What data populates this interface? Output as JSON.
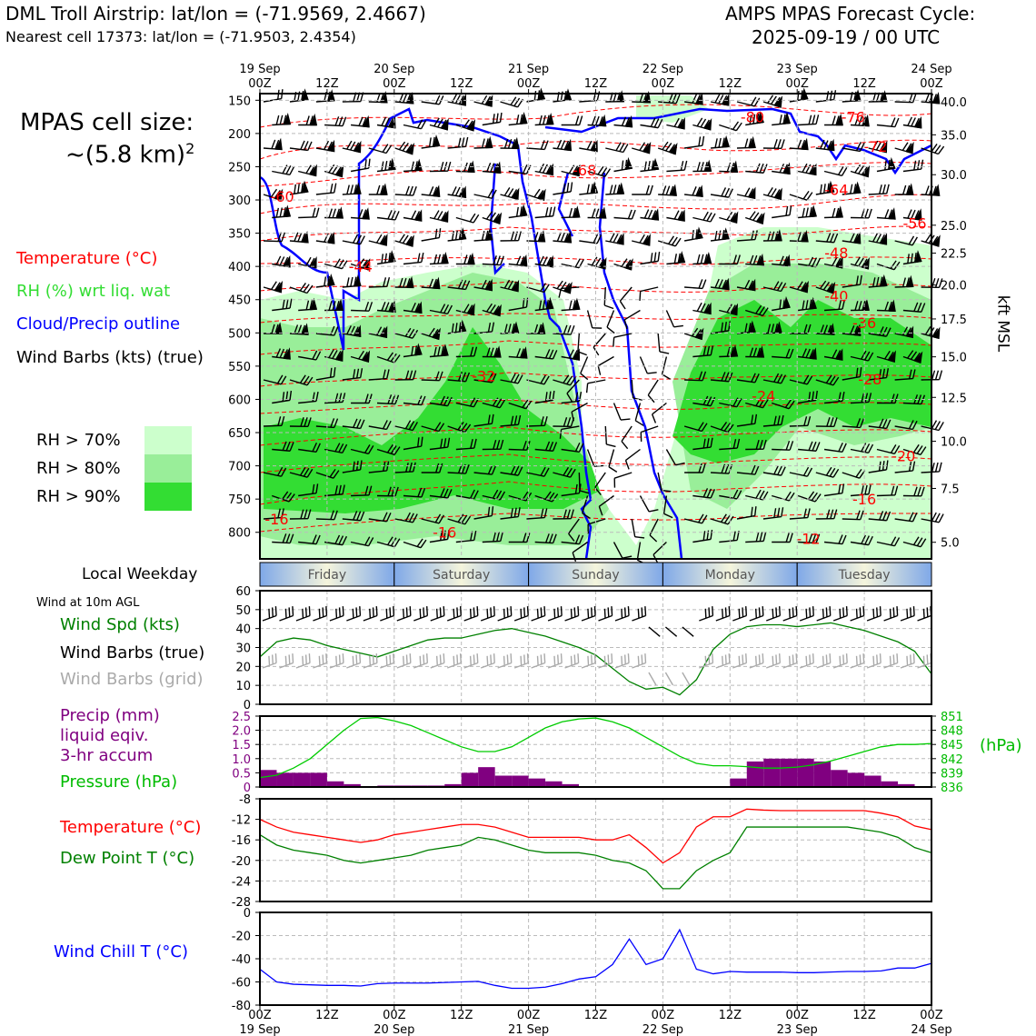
{
  "header": {
    "title_left": "DML Troll Airstrip: lat/lon = (-71.9569, 2.4667)",
    "subtitle_left": "Nearest cell 17373: lat/lon = (-71.9503, 2.4354)",
    "title_right_1": "AMPS MPAS Forecast Cycle:",
    "title_right_2": "2025-09-19 / 00 UTC"
  },
  "legend": {
    "cell_size_1": "MPAS cell size:",
    "cell_size_2": "~(5.8 km)",
    "cell_size_sup": "2",
    "temperature": "Temperature (°C)",
    "rh": "RH (%) wrt liq. wat",
    "cloud": "Cloud/Precip outline",
    "wind": "Wind Barbs (kts) (true)",
    "rh70": "RH > 70%",
    "rh80": "RH > 80%",
    "rh90": "RH > 90%",
    "colors": {
      "rh70": "#ccffcc",
      "rh80": "#99ee99",
      "rh90": "#33dd33",
      "temperature": "#ff0000",
      "cloud": "#0000ff",
      "rh_label": "#33dd33"
    }
  },
  "weekday": {
    "label": "Local Weekday",
    "days": [
      "Friday",
      "Saturday",
      "Sunday",
      "Monday",
      "Tuesday"
    ]
  },
  "panels": {
    "wind_note": "Wind at 10m AGL",
    "wind_spd": "Wind Spd (kts)",
    "wind_barbs_true": "Wind Barbs (true)",
    "wind_barbs_grid": "Wind Barbs (grid)",
    "precip_1": "Precip (mm)",
    "precip_2": "liquid eqiv.",
    "precip_3": "3-hr accum",
    "pressure": "Pressure (hPa)",
    "pressure_unit": "(hPa)",
    "temperature": "Temperature (°C)",
    "dewpoint": "Dew Point T (°C)",
    "windchill": "Wind Chill T (°C)",
    "right_axis": "kft MSL"
  },
  "time_axis": {
    "top_major": [
      {
        "t": 0,
        "l1": "19 Sep",
        "l2": "00Z"
      },
      {
        "t": 24,
        "l1": "20 Sep",
        "l2": "00Z"
      },
      {
        "t": 48,
        "l1": "21 Sep",
        "l2": "00Z"
      },
      {
        "t": 72,
        "l1": "22 Sep",
        "l2": "00Z"
      },
      {
        "t": 96,
        "l1": "23 Sep",
        "l2": "00Z"
      },
      {
        "t": 120,
        "l1": "24 Sep",
        "l2": "00Z"
      }
    ],
    "top_minor": [
      {
        "t": 12,
        "l": "12Z"
      },
      {
        "t": 36,
        "l": "12Z"
      },
      {
        "t": 60,
        "l": "12Z"
      },
      {
        "t": 84,
        "l": "12Z"
      },
      {
        "t": 108,
        "l": "12Z"
      }
    ],
    "bottom": [
      {
        "t": 0,
        "l1": "00Z",
        "l2": "19 Sep"
      },
      {
        "t": 12,
        "l1": "12Z",
        "l2": ""
      },
      {
        "t": 24,
        "l1": "00Z",
        "l2": "20 Sep"
      },
      {
        "t": 36,
        "l1": "12Z",
        "l2": ""
      },
      {
        "t": 48,
        "l1": "00Z",
        "l2": "21 Sep"
      },
      {
        "t": 60,
        "l1": "12Z",
        "l2": ""
      },
      {
        "t": 72,
        "l1": "00Z",
        "l2": "22 Sep"
      },
      {
        "t": 84,
        "l1": "12Z",
        "l2": ""
      },
      {
        "t": 96,
        "l1": "00Z",
        "l2": "23 Sep"
      },
      {
        "t": 108,
        "l1": "12Z",
        "l2": ""
      },
      {
        "t": 120,
        "l1": "00Z",
        "l2": "24 Sep"
      }
    ]
  },
  "chart_data": [
    {
      "type": "heatmap",
      "name": "cross-section",
      "y_axis": {
        "label": "hPa",
        "ticks": [
          "150",
          "200",
          "250",
          "300",
          "350",
          "400",
          "450",
          "500",
          "550",
          "600",
          "650",
          "700",
          "750",
          "800"
        ],
        "range": [
          140,
          840
        ]
      },
      "y2_axis": {
        "label": "kft MSL",
        "ticks": [
          {
            "p": 152,
            "l": "40.0"
          },
          {
            "p": 202,
            "l": "35.0"
          },
          {
            "p": 262,
            "l": "30.0"
          },
          {
            "p": 338,
            "l": "25.0"
          },
          {
            "p": 380,
            "l": "22.5"
          },
          {
            "p": 428,
            "l": "20.0"
          },
          {
            "p": 479,
            "l": "17.5"
          },
          {
            "p": 536,
            "l": "15.0"
          },
          {
            "p": 597,
            "l": "12.5"
          },
          {
            "p": 663,
            "l": "10.0"
          },
          {
            "p": 734,
            "l": "7.5"
          },
          {
            "p": 815,
            "l": "5.0"
          }
        ]
      },
      "temperature_labels": [
        {
          "t": 4,
          "p": 300,
          "l": "-60"
        },
        {
          "t": 18,
          "p": 405,
          "l": "-44"
        },
        {
          "t": 58,
          "p": 260,
          "l": "-68"
        },
        {
          "t": 88,
          "p": 180,
          "l": "-80"
        },
        {
          "t": 106,
          "p": 180,
          "l": "-76"
        },
        {
          "t": 110,
          "p": 225,
          "l": "-72"
        },
        {
          "t": 103,
          "p": 290,
          "l": "-64"
        },
        {
          "t": 117,
          "p": 340,
          "l": "-56"
        },
        {
          "t": 103,
          "p": 385,
          "l": "-48"
        },
        {
          "t": 103,
          "p": 450,
          "l": "-40"
        },
        {
          "t": 108,
          "p": 490,
          "l": "-36"
        },
        {
          "t": 40,
          "p": 570,
          "l": "-32"
        },
        {
          "t": 90,
          "p": 600,
          "l": "-24"
        },
        {
          "t": 109,
          "p": 575,
          "l": "-28"
        },
        {
          "t": 115,
          "p": 690,
          "l": "-20"
        },
        {
          "t": 108,
          "p": 755,
          "l": "-16"
        },
        {
          "t": 3,
          "p": 785,
          "l": "-16"
        },
        {
          "t": 33,
          "p": 805,
          "l": "-16"
        },
        {
          "t": 98,
          "p": 815,
          "l": "-12"
        }
      ],
      "rh_regions_note": "RH>70/80/90% shaded regions, 0-120 h x 150-840 hPa"
    },
    {
      "type": "line",
      "name": "wind",
      "ylim": [
        0,
        60
      ],
      "yticks": [
        0,
        10,
        20,
        30,
        40,
        50,
        60
      ],
      "x": [
        0,
        3,
        6,
        9,
        12,
        15,
        18,
        21,
        24,
        27,
        30,
        33,
        36,
        39,
        42,
        45,
        48,
        51,
        54,
        57,
        60,
        63,
        66,
        69,
        72,
        75,
        78,
        81,
        84,
        87,
        90,
        93,
        96,
        99,
        102,
        105,
        108,
        111,
        114,
        117,
        120
      ],
      "series": [
        {
          "values": [
            25,
            33,
            35,
            34,
            31,
            29,
            27,
            25,
            28,
            31,
            34,
            35,
            35,
            37,
            39,
            40,
            38,
            36,
            33,
            30,
            26,
            19,
            12,
            8,
            9,
            5,
            13,
            29,
            37,
            41,
            42,
            42,
            41,
            42,
            43,
            41,
            39,
            36,
            33,
            28,
            16
          ]
        }
      ]
    },
    {
      "type": "bar",
      "name": "precip_pressure",
      "ylim": [
        0,
        2.5
      ],
      "yticks": [
        "0",
        "0.5",
        "1.0",
        "1.5",
        "2.0",
        "2.5"
      ],
      "y2ticks": [
        "836",
        "839",
        "842",
        "845",
        "848",
        "851"
      ],
      "y2lim": [
        836,
        851
      ],
      "x": [
        0,
        3,
        6,
        9,
        12,
        15,
        18,
        21,
        24,
        27,
        30,
        33,
        36,
        39,
        42,
        45,
        48,
        51,
        54,
        57,
        60,
        63,
        66,
        69,
        72,
        75,
        78,
        81,
        84,
        87,
        90,
        93,
        96,
        99,
        102,
        105,
        108,
        111,
        114,
        117
      ],
      "precip": [
        0.6,
        0.5,
        0.5,
        0.5,
        0.2,
        0.1,
        0.0,
        0.05,
        0.05,
        0.05,
        0.05,
        0.1,
        0.5,
        0.7,
        0.4,
        0.4,
        0.3,
        0.2,
        0.1,
        0,
        0,
        0,
        0,
        0,
        0,
        0,
        0,
        0,
        0.3,
        0.9,
        1.0,
        1.0,
        1.0,
        0.9,
        0.6,
        0.5,
        0.4,
        0.2,
        0.1,
        0
      ],
      "pressure_x": [
        0,
        3,
        6,
        9,
        12,
        15,
        18,
        21,
        24,
        27,
        30,
        33,
        36,
        39,
        42,
        45,
        48,
        51,
        54,
        57,
        60,
        63,
        66,
        69,
        72,
        75,
        78,
        81,
        84,
        87,
        90,
        93,
        96,
        99,
        102,
        105,
        108,
        111,
        114,
        117,
        120
      ],
      "pressure": [
        838,
        838.5,
        840,
        842,
        845,
        848,
        850.5,
        850.7,
        850,
        849,
        847.5,
        846,
        844.5,
        843.5,
        843.5,
        844.5,
        846.5,
        848.5,
        849.8,
        850.4,
        850.6,
        849.8,
        848.5,
        846.5,
        844.5,
        842.5,
        841,
        840.5,
        840.5,
        840.3,
        840,
        840,
        840.2,
        840.7,
        841.5,
        842.5,
        843.5,
        844.5,
        845,
        845,
        845.2
      ]
    },
    {
      "type": "line",
      "name": "temp_dewpoint",
      "ylim": [
        -28,
        -8
      ],
      "yticks": [
        "-8",
        "-12",
        "-16",
        "-20",
        "-24",
        "-28"
      ],
      "x": [
        0,
        3,
        6,
        9,
        12,
        15,
        18,
        21,
        24,
        27,
        30,
        33,
        36,
        39,
        42,
        45,
        48,
        51,
        54,
        57,
        60,
        63,
        66,
        69,
        72,
        75,
        78,
        81,
        84,
        87,
        90,
        93,
        96,
        99,
        102,
        105,
        108,
        111,
        114,
        117,
        120
      ],
      "series": [
        {
          "values": [
            -12,
            -13.5,
            -14.5,
            -15,
            -15.5,
            -16,
            -16.5,
            -16,
            -15,
            -14.5,
            -14,
            -13.5,
            -13,
            -13,
            -13.5,
            -14.5,
            -15.5,
            -15.5,
            -15.5,
            -15.5,
            -16,
            -16,
            -15,
            -17.5,
            -20.5,
            -18.5,
            -13.5,
            -11.5,
            -11.5,
            -10,
            -10.2,
            -10.3,
            -10.3,
            -10.3,
            -10.3,
            -10.3,
            -10.3,
            -10.8,
            -11.5,
            -13.3,
            -14
          ]
        },
        {
          "values": [
            -15,
            -17,
            -18,
            -18.5,
            -19,
            -20,
            -20.5,
            -20,
            -19.5,
            -19,
            -18,
            -17.5,
            -17,
            -15.5,
            -16,
            -17,
            -18,
            -18.5,
            -18.5,
            -18.5,
            -19,
            -20,
            -20.5,
            -22,
            -25.5,
            -25.5,
            -22,
            -20,
            -18.5,
            -13.5,
            -13.5,
            -13.5,
            -13.5,
            -13.5,
            -13.5,
            -13.5,
            -14,
            -14.5,
            -15.5,
            -17.5,
            -18.5
          ]
        }
      ]
    },
    {
      "type": "line",
      "name": "windchill",
      "ylim": [
        -80,
        0
      ],
      "yticks": [
        "0",
        "-20",
        "-40",
        "-60",
        "-80"
      ],
      "x": [
        0,
        3,
        6,
        9,
        12,
        15,
        18,
        21,
        24,
        27,
        30,
        33,
        36,
        39,
        42,
        45,
        48,
        51,
        54,
        57,
        60,
        63,
        66,
        69,
        72,
        75,
        78,
        81,
        84,
        87,
        90,
        93,
        96,
        99,
        102,
        105,
        108,
        111,
        114,
        117,
        120
      ],
      "series": [
        {
          "values": [
            -49,
            -60,
            -62,
            -62.5,
            -63,
            -63,
            -63.5,
            -61.5,
            -61,
            -61,
            -61,
            -60.5,
            -60,
            -59.5,
            -63,
            -65.5,
            -65.5,
            -64.5,
            -61.5,
            -57.5,
            -55.5,
            -45,
            -23,
            -45,
            -40,
            -15,
            -49,
            -53,
            -51,
            -51.5,
            -51.5,
            -51.5,
            -52,
            -52,
            -51.5,
            -51,
            -51,
            -50.5,
            -48,
            -48,
            -44
          ]
        }
      ]
    }
  ]
}
